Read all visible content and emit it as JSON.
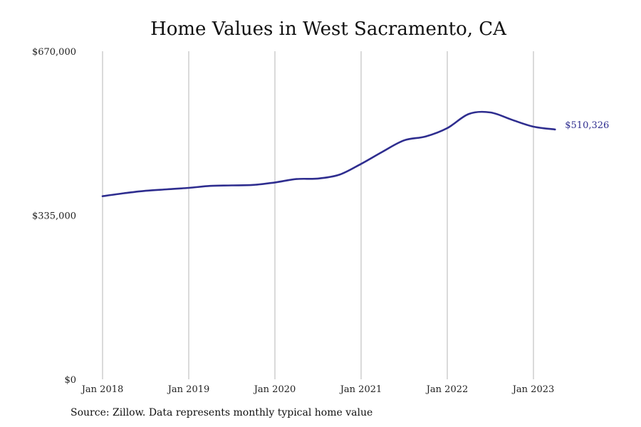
{
  "source_note": "Source: Zillow. Data represents monthly typical home value",
  "colors": {
    "line": "#2e2d8f",
    "grid": "#b5b5b5"
  },
  "chart_data": {
    "type": "line",
    "title": "Home Values in West Sacramento, CA",
    "xlabel": "",
    "ylabel": "",
    "ylim": [
      0,
      670000
    ],
    "xlim": [
      "2018-01",
      "2024-01"
    ],
    "y_ticks": [
      {
        "value": 0,
        "label": "$0"
      },
      {
        "value": 335000,
        "label": "$335,000"
      },
      {
        "value": 670000,
        "label": "$670,000"
      }
    ],
    "x_ticks": [
      {
        "date": "2018-01",
        "label": "Jan 2018"
      },
      {
        "date": "2019-01",
        "label": "Jan 2019"
      },
      {
        "date": "2020-01",
        "label": "Jan 2020"
      },
      {
        "date": "2021-01",
        "label": "Jan 2021"
      },
      {
        "date": "2022-01",
        "label": "Jan 2022"
      },
      {
        "date": "2023-01",
        "label": "Jan 2023"
      }
    ],
    "grid": "vertical lines at year ticks",
    "series": [
      {
        "x": [
          "2018-01",
          "2018-04",
          "2018-07",
          "2018-10",
          "2019-01",
          "2019-04",
          "2019-07",
          "2019-10",
          "2020-01",
          "2020-04",
          "2020-07",
          "2020-10",
          "2021-01",
          "2021-04",
          "2021-07",
          "2021-10",
          "2022-01",
          "2022-04",
          "2022-07",
          "2022-10",
          "2023-01",
          "2023-04"
        ],
        "values": [
          374000,
          380000,
          385000,
          388000,
          391000,
          395000,
          396000,
          397000,
          402000,
          409000,
          410000,
          418000,
          440000,
          465000,
          488000,
          496000,
          513000,
          542000,
          545000,
          530000,
          516000,
          510326
        ]
      }
    ],
    "end_label": "$510,326"
  }
}
